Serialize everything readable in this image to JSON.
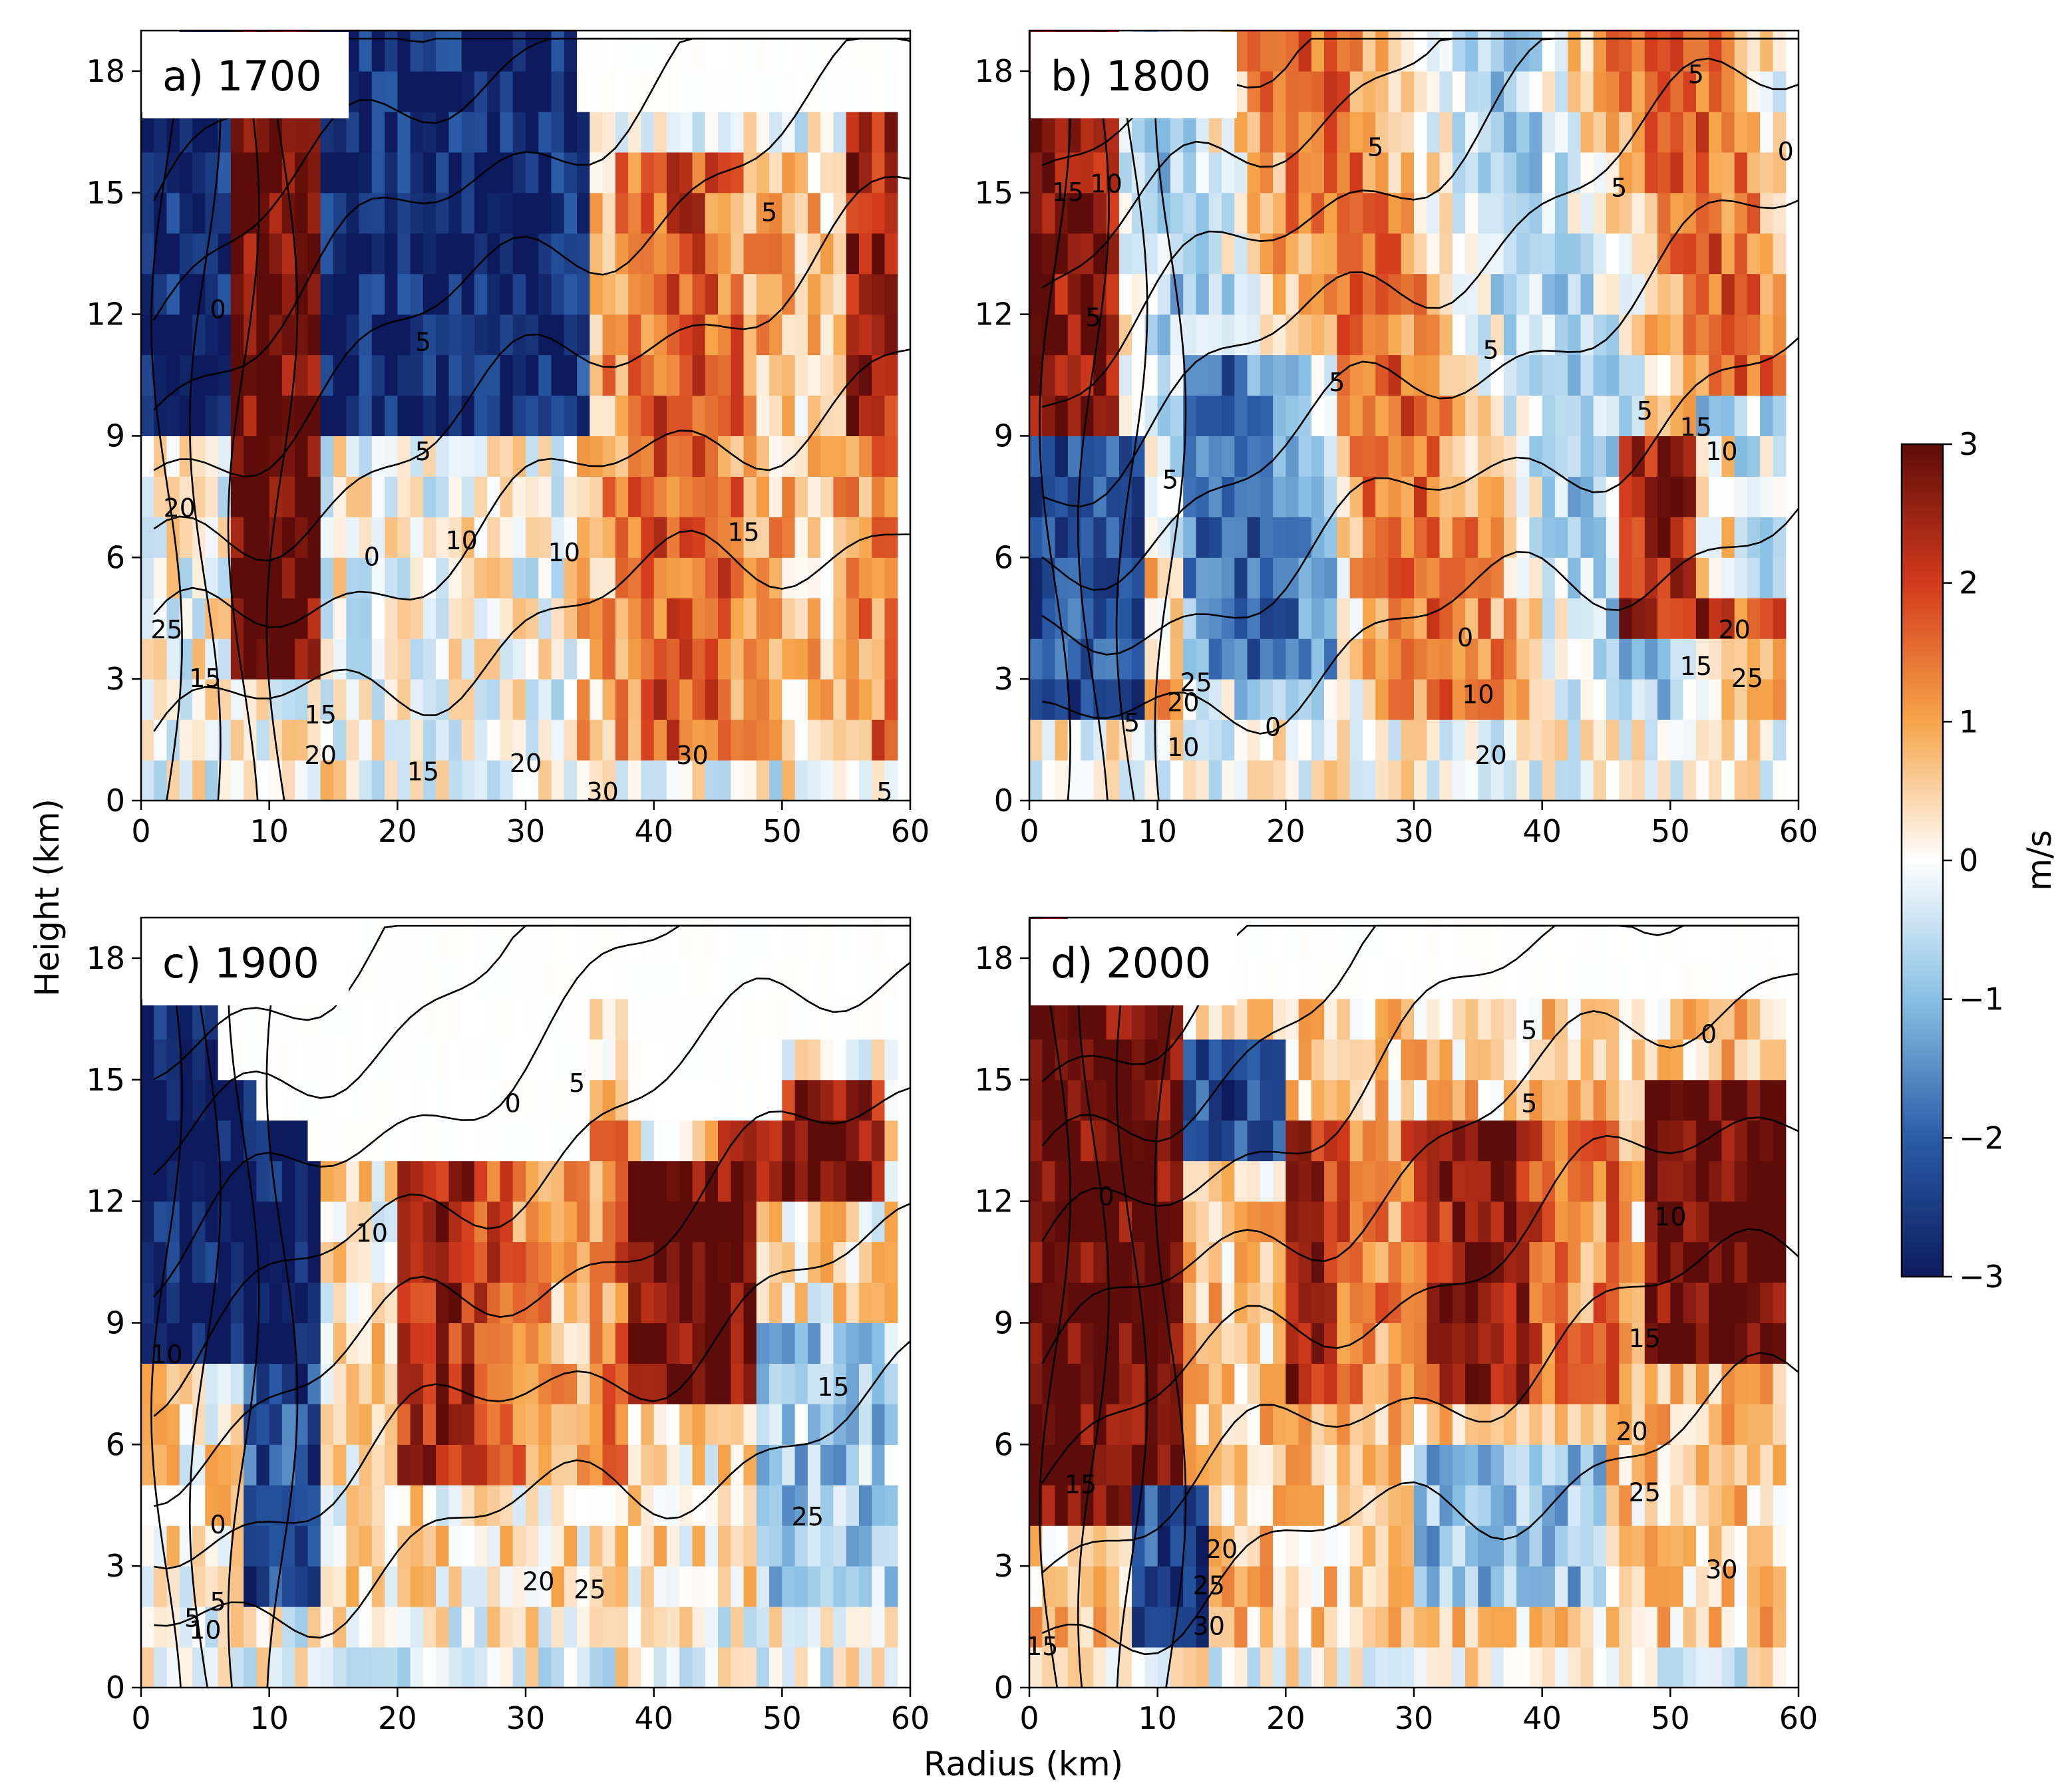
{
  "figure": {
    "xlabel": "Radius (km)",
    "ylabel": "Height (km)",
    "colorbar": {
      "label": "m/s",
      "min": -3,
      "max": 3,
      "ticks": [
        -3,
        -2,
        -1,
        0,
        1,
        2,
        3
      ],
      "tick_labels": [
        "−3",
        "−2",
        "−1",
        "0",
        "1",
        "2",
        "3"
      ],
      "colormap": "RdBu_r",
      "colors": [
        "#0d1b5e",
        "#2a5ca8",
        "#89c0e4",
        "#ffffff",
        "#f6a54a",
        "#d33a1c",
        "#5e0c0a"
      ]
    }
  },
  "chart_data": [
    {
      "type": "heatmap",
      "title": "a) 1700",
      "xlim": [
        0,
        60
      ],
      "ylim": [
        0,
        19
      ],
      "xticks": [
        0,
        10,
        20,
        30,
        40,
        50,
        60
      ],
      "yticks": [
        0,
        3,
        6,
        9,
        12,
        15,
        18
      ],
      "contour_labels": [
        {
          "text": "0",
          "x": 6,
          "y": 12.1
        },
        {
          "text": "5",
          "x": 22,
          "y": 11.3
        },
        {
          "text": "5",
          "x": 22,
          "y": 8.6
        },
        {
          "text": "5",
          "x": 49,
          "y": 14.5
        },
        {
          "text": "0",
          "x": 18,
          "y": 6
        },
        {
          "text": "10",
          "x": 25,
          "y": 6.4
        },
        {
          "text": "10",
          "x": 33,
          "y": 6.1
        },
        {
          "text": "15",
          "x": 47,
          "y": 6.6
        },
        {
          "text": "20",
          "x": 3,
          "y": 7.2
        },
        {
          "text": "25",
          "x": 2,
          "y": 4.2
        },
        {
          "text": "15",
          "x": 5,
          "y": 3
        },
        {
          "text": "15",
          "x": 14,
          "y": 2.1
        },
        {
          "text": "20",
          "x": 14,
          "y": 1.1
        },
        {
          "text": "15",
          "x": 22,
          "y": 0.7
        },
        {
          "text": "20",
          "x": 30,
          "y": 0.9
        },
        {
          "text": "30",
          "x": 43,
          "y": 1.1
        },
        {
          "text": "30",
          "x": 36,
          "y": 0.2
        },
        {
          "text": "5",
          "x": 58,
          "y": 0.2
        }
      ]
    },
    {
      "type": "heatmap",
      "title": "b) 1800",
      "xlim": [
        0,
        60
      ],
      "ylim": [
        0,
        19
      ],
      "xticks": [
        0,
        10,
        20,
        30,
        40,
        50,
        60
      ],
      "yticks": [
        0,
        3,
        6,
        9,
        12,
        15,
        18
      ],
      "contour_labels": [
        {
          "text": "5",
          "x": 52,
          "y": 17.9
        },
        {
          "text": "0",
          "x": 59,
          "y": 16
        },
        {
          "text": "5",
          "x": 27,
          "y": 16.1
        },
        {
          "text": "5",
          "x": 46,
          "y": 15.1
        },
        {
          "text": "15",
          "x": 3,
          "y": 15
        },
        {
          "text": "10",
          "x": 6,
          "y": 15.2
        },
        {
          "text": "5",
          "x": 5,
          "y": 11.9
        },
        {
          "text": "5",
          "x": 36,
          "y": 11.1
        },
        {
          "text": "5",
          "x": 24,
          "y": 10.3
        },
        {
          "text": "5",
          "x": 48,
          "y": 9.6
        },
        {
          "text": "15",
          "x": 52,
          "y": 9.2
        },
        {
          "text": "10",
          "x": 54,
          "y": 8.6
        },
        {
          "text": "5",
          "x": 11,
          "y": 7.9
        },
        {
          "text": "0",
          "x": 34,
          "y": 4
        },
        {
          "text": "10",
          "x": 35,
          "y": 2.6
        },
        {
          "text": "20",
          "x": 36,
          "y": 1.1
        },
        {
          "text": "25",
          "x": 13,
          "y": 2.9
        },
        {
          "text": "20",
          "x": 12,
          "y": 2.4
        },
        {
          "text": "5",
          "x": 8,
          "y": 1.9
        },
        {
          "text": "10",
          "x": 12,
          "y": 1.3
        },
        {
          "text": "0",
          "x": 19,
          "y": 1.8
        },
        {
          "text": "20",
          "x": 55,
          "y": 4.2
        },
        {
          "text": "15",
          "x": 52,
          "y": 3.3
        },
        {
          "text": "25",
          "x": 56,
          "y": 3
        }
      ]
    },
    {
      "type": "heatmap",
      "title": "c) 1900",
      "xlim": [
        0,
        60
      ],
      "ylim": [
        0,
        19
      ],
      "xticks": [
        0,
        10,
        20,
        30,
        40,
        50,
        60
      ],
      "yticks": [
        0,
        3,
        6,
        9,
        12,
        15,
        18
      ],
      "contour_labels": [
        {
          "text": "0",
          "x": 29,
          "y": 14.4
        },
        {
          "text": "5",
          "x": 34,
          "y": 14.9
        },
        {
          "text": "10",
          "x": 18,
          "y": 11.2
        },
        {
          "text": "10",
          "x": 2,
          "y": 8.2
        },
        {
          "text": "15",
          "x": 54,
          "y": 7.4
        },
        {
          "text": "0",
          "x": 6,
          "y": 4
        },
        {
          "text": "25",
          "x": 52,
          "y": 4.2
        },
        {
          "text": "20",
          "x": 31,
          "y": 2.6
        },
        {
          "text": "25",
          "x": 35,
          "y": 2.4
        },
        {
          "text": "5",
          "x": 4,
          "y": 1.7
        },
        {
          "text": "5",
          "x": 6,
          "y": 2.1
        },
        {
          "text": "10",
          "x": 5,
          "y": 1.4
        }
      ]
    },
    {
      "type": "heatmap",
      "title": "d) 2000",
      "xlim": [
        0,
        60
      ],
      "ylim": [
        0,
        19
      ],
      "xticks": [
        0,
        10,
        20,
        30,
        40,
        50,
        60
      ],
      "yticks": [
        0,
        3,
        6,
        9,
        12,
        15,
        18
      ],
      "contour_labels": [
        {
          "text": "5",
          "x": 39,
          "y": 16.2
        },
        {
          "text": "0",
          "x": 53,
          "y": 16.1
        },
        {
          "text": "5",
          "x": 39,
          "y": 14.4
        },
        {
          "text": "0",
          "x": 6,
          "y": 12.1
        },
        {
          "text": "10",
          "x": 50,
          "y": 11.6
        },
        {
          "text": "15",
          "x": 48,
          "y": 8.6
        },
        {
          "text": "20",
          "x": 47,
          "y": 6.3
        },
        {
          "text": "25",
          "x": 48,
          "y": 4.8
        },
        {
          "text": "15",
          "x": 4,
          "y": 5
        },
        {
          "text": "20",
          "x": 15,
          "y": 3.4
        },
        {
          "text": "25",
          "x": 14,
          "y": 2.5
        },
        {
          "text": "30",
          "x": 14,
          "y": 1.5
        },
        {
          "text": "30",
          "x": 54,
          "y": 2.9
        },
        {
          "text": "15",
          "x": 1,
          "y": 1
        }
      ]
    }
  ]
}
